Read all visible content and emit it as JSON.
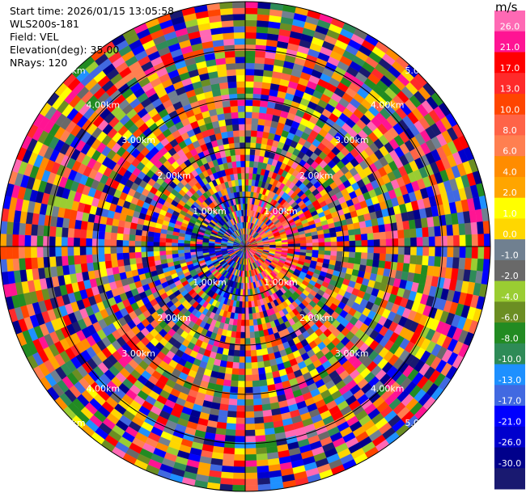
{
  "header": {
    "start_time": "Start time: 2026/01/15 13:05:58",
    "instrument": "WLS200s-181",
    "field": "Field: VEL",
    "elevation": "Elevation(deg): 35.00",
    "nrays": "NRays: 120"
  },
  "colorbar": {
    "unit": "m/s",
    "ticks": [
      "26.0",
      "21.0",
      "17.0",
      "13.0",
      "10.0",
      "8.0",
      "6.0",
      "4.0",
      "2.0",
      "1.0",
      "0.0",
      "-1.0",
      "-2.0",
      "-4.0",
      "-6.0",
      "-8.0",
      "-10.0",
      "-13.0",
      "-17.0",
      "-21.0",
      "-26.0",
      "-30.0"
    ],
    "colors": [
      "#ff69b4",
      "#ff1493",
      "#ff0000",
      "#ff2a2a",
      "#ff4500",
      "#ff6347",
      "#ff7f50",
      "#ff8c00",
      "#ffa500",
      "#ffff00",
      "#ffd700",
      "#708090",
      "#696969",
      "#9acd32",
      "#6b8e23",
      "#228b22",
      "#2e8b57",
      "#1e90ff",
      "#4169e1",
      "#0000ff",
      "#0000cd",
      "#00008b",
      "#191970"
    ]
  },
  "chart_data": {
    "type": "heatmap",
    "projection": "polar (PPI scan)",
    "field": "VEL",
    "n_rays": 120,
    "elevation_deg": 35.0,
    "range_ring_labels": [
      "1.00km",
      "2.00km",
      "3.00km",
      "4.00km",
      "5.00km"
    ],
    "value_range": [
      -30.0,
      26.0
    ],
    "unit": "m/s",
    "grid": true
  }
}
